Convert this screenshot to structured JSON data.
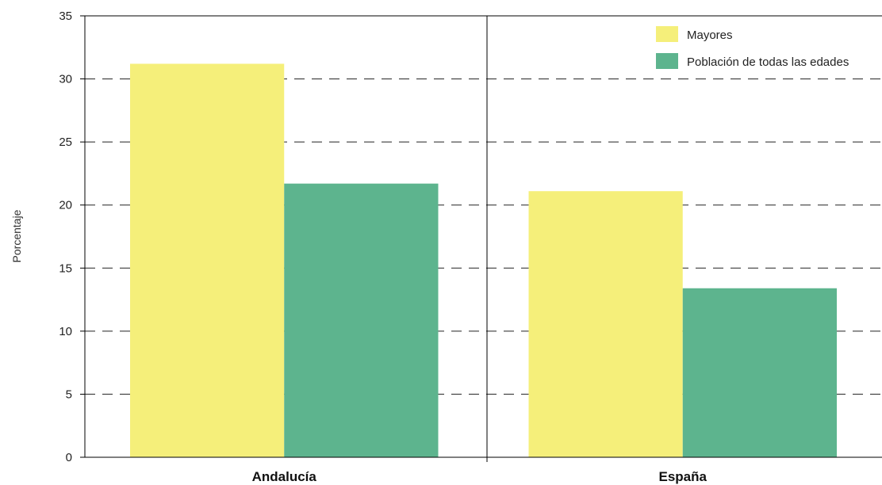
{
  "chart_data": {
    "type": "bar",
    "title": "",
    "xlabel": "",
    "ylabel": "Porcentaje",
    "categories": [
      "Andalucía",
      "España"
    ],
    "series": [
      {
        "name": "Mayores",
        "values": [
          31.2,
          21.1
        ],
        "color": "#f5ef7a"
      },
      {
        "name": "Población de todas las edades",
        "values": [
          21.7,
          13.4
        ],
        "color": "#5db48e"
      }
    ],
    "ylim": [
      0,
      35
    ],
    "yticks": [
      "0",
      "5",
      "10",
      "15",
      "20",
      "25",
      "30",
      "35"
    ],
    "grid": "dashed-horizontal",
    "legend_position": "top-right"
  }
}
